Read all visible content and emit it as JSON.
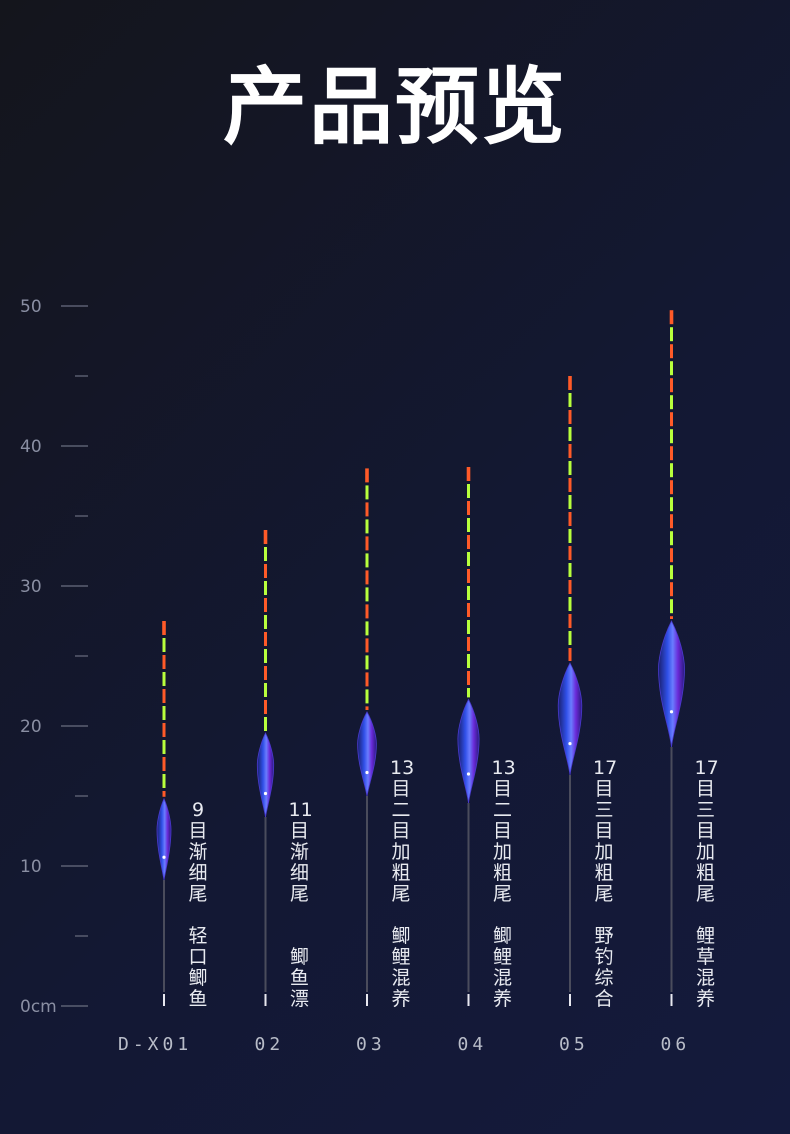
{
  "title": "产品预览",
  "axis": {
    "unit_suffix": "cm",
    "min": 0,
    "max": 50,
    "major_ticks": [
      {
        "value": 50,
        "label": "50"
      },
      {
        "value": 40,
        "label": "40"
      },
      {
        "value": 30,
        "label": "30"
      },
      {
        "value": 20,
        "label": "20"
      },
      {
        "value": 10,
        "label": "10"
      },
      {
        "value": 0,
        "label": "0cm"
      }
    ],
    "minor_ticks": [
      45,
      35,
      25,
      15,
      5
    ]
  },
  "colors": {
    "tail_orange": "#ff5a28",
    "tail_green": "#b8ff3c",
    "body_blue": "#2a3ad8",
    "body_purple": "#7a2ae0",
    "stem": "#4a4c5c"
  },
  "floats": [
    {
      "model": "D-X01",
      "total_cm": 27.5,
      "body_top_cm": 14.8,
      "body_bottom_cm": 9.0,
      "desc1": [
        "9",
        "目",
        "渐",
        "细",
        "尾"
      ],
      "desc2": [
        "轻",
        "口",
        "鲫",
        "鱼"
      ]
    },
    {
      "model": "02",
      "total_cm": 34.0,
      "body_top_cm": 19.5,
      "body_bottom_cm": 13.5,
      "desc1": [
        "11",
        "目",
        "渐",
        "细",
        "尾"
      ],
      "desc2": [
        "鲫",
        "鱼",
        "漂"
      ]
    },
    {
      "model": "03",
      "total_cm": 38.4,
      "body_top_cm": 21.0,
      "body_bottom_cm": 15.0,
      "desc1": [
        "13",
        "目",
        "二",
        "目",
        "加",
        "粗",
        "尾"
      ],
      "desc2": [
        "鲫",
        "鲤",
        "混",
        "养"
      ]
    },
    {
      "model": "04",
      "total_cm": 38.5,
      "body_top_cm": 21.9,
      "body_bottom_cm": 14.5,
      "desc1": [
        "13",
        "目",
        "二",
        "目",
        "加",
        "粗",
        "尾"
      ],
      "desc2": [
        "鲫",
        "鲤",
        "混",
        "养"
      ]
    },
    {
      "model": "05",
      "total_cm": 45.0,
      "body_top_cm": 24.5,
      "body_bottom_cm": 16.5,
      "desc1": [
        "17",
        "目",
        "三",
        "目",
        "加",
        "粗",
        "尾"
      ],
      "desc2": [
        "野",
        "钓",
        "综",
        "合"
      ]
    },
    {
      "model": "06",
      "total_cm": 49.7,
      "body_top_cm": 27.5,
      "body_bottom_cm": 18.5,
      "desc1": [
        "17",
        "目",
        "三",
        "目",
        "加",
        "粗",
        "尾"
      ],
      "desc2": [
        "鲤",
        "草",
        "混",
        "养"
      ]
    }
  ]
}
